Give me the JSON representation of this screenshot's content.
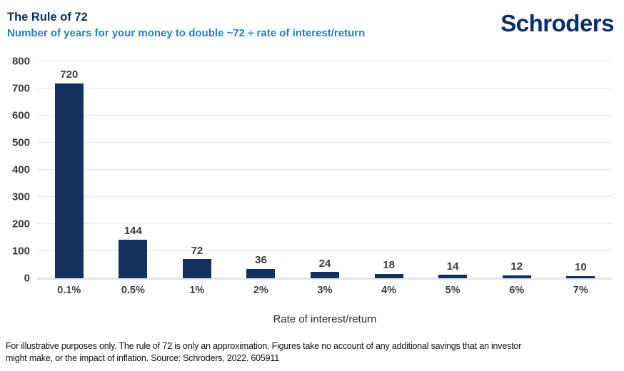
{
  "header": {
    "title": "The Rule of 72",
    "subtitle": "Number of years for your money to double ~72 ÷ rate of interest/return",
    "logo": "Schroders"
  },
  "chart_data": {
    "type": "bar",
    "categories": [
      "0.1%",
      "0.5%",
      "1%",
      "2%",
      "3%",
      "4%",
      "5%",
      "6%",
      "7%"
    ],
    "values": [
      720,
      144,
      72,
      36,
      24,
      18,
      14,
      12,
      10
    ],
    "title": "The Rule of 72",
    "subtitle": "Number of years for your money to double ~72 ÷ rate of interest/return",
    "xlabel": "Rate of interest/return",
    "ylabel": "",
    "ylim": [
      0,
      800
    ],
    "ytick_step": 100,
    "grid": "horizontal",
    "legend": "none",
    "bar_color": "#13305e"
  },
  "footer": {
    "lines": [
      "For illustrative purposes only. The rule of 72 is only an approximation. Figures take no account of any additional savings that an investor",
      "might make, or the impact of inflation. Source: Schroders, 2022. 605911"
    ]
  },
  "colors": {
    "bar_navy": "#13305e",
    "title_navy": "#0c2d5e",
    "subtitle_blue": "#2a7cc0",
    "logo_navy": "#0b2e6b",
    "gridline_gray": "#e7e7e7",
    "axis_text_gray": "#3d3d3d"
  }
}
